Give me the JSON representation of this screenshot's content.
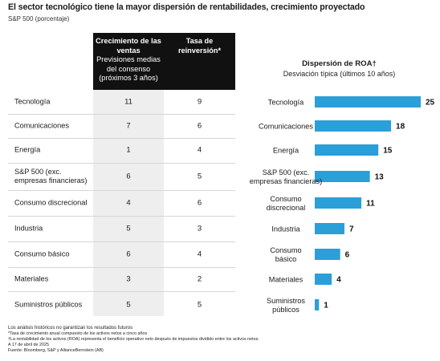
{
  "title": "El sector tecnológico tiene la mayor dispersión de rentabilidades, crecimiento proyectado",
  "subtitle": "S&P 500 (porcentaje)",
  "table": {
    "header_sales_bold": "Crecimiento de las ventas",
    "header_sales_sub": "Previsiones medias del consenso (próximos 3 años)",
    "header_reinvest_bold": "Tasa de reinversión*",
    "rows": [
      {
        "label": "Tecnología",
        "sales_growth": "11",
        "reinvestment": "9"
      },
      {
        "label": "Comunicaciones",
        "sales_growth": "7",
        "reinvestment": "6"
      },
      {
        "label": "Energía",
        "sales_growth": "1",
        "reinvestment": "4"
      },
      {
        "label": "S&P 500 (exc. empresas financieras)",
        "sales_growth": "6",
        "reinvestment": "5"
      },
      {
        "label": "Consumo discrecional",
        "sales_growth": "4",
        "reinvestment": "6"
      },
      {
        "label": "Industria",
        "sales_growth": "5",
        "reinvestment": "3"
      },
      {
        "label": "Consumo básico",
        "sales_growth": "6",
        "reinvestment": "4"
      },
      {
        "label": "Materiales",
        "sales_growth": "3",
        "reinvestment": "2"
      },
      {
        "label": "Suministros públicos",
        "sales_growth": "5",
        "reinvestment": "5"
      }
    ]
  },
  "chart_data": {
    "type": "bar",
    "title": "Dispersión de ROA†",
    "subtitle": "Desviación típica (últimos 10 años)",
    "categories": [
      "Tecnología",
      "Comunicaciones",
      "Energía",
      "S&P 500 (exc. empresas financieras)",
      "Consumo discrecional",
      "Industria",
      "Consumo básico",
      "Materiales",
      "Suministros públicos"
    ],
    "category_lines": [
      [
        "Tecnología"
      ],
      [
        "Comunicaciones"
      ],
      [
        "Energía"
      ],
      [
        "S&P 500 (exc.",
        "empresas financieras)"
      ],
      [
        "Consumo",
        "discrecional"
      ],
      [
        "Industria"
      ],
      [
        "Consumo",
        "básico"
      ],
      [
        "Materiales"
      ],
      [
        "Suministros",
        "públicos"
      ]
    ],
    "values": [
      25,
      18,
      15,
      13,
      11,
      7,
      6,
      4,
      1
    ],
    "xlim": [
      0,
      25
    ],
    "bar_color": "#2a9fd8",
    "grid": false,
    "legend": "none",
    "xlabel": "",
    "ylabel": ""
  },
  "notes": {
    "n1": "Los análisis históricos no garantizan los resultados futuros",
    "n2": "*Tasa de crecimiento anual compuesto de los activos netos a cinco años",
    "n3": "†La rentabilidad de los activos (ROA) representa el beneficio operativo neto después de impuestos dividido entre los activos netos.",
    "n4": "A 17 de abril de 2025",
    "n5": "Fuente: Bloomberg, S&P y AllianceBernstein (AB)"
  },
  "colors": {
    "header_bg": "#111111",
    "shade": "#eeeeee",
    "bar": "#2a9fd8"
  }
}
